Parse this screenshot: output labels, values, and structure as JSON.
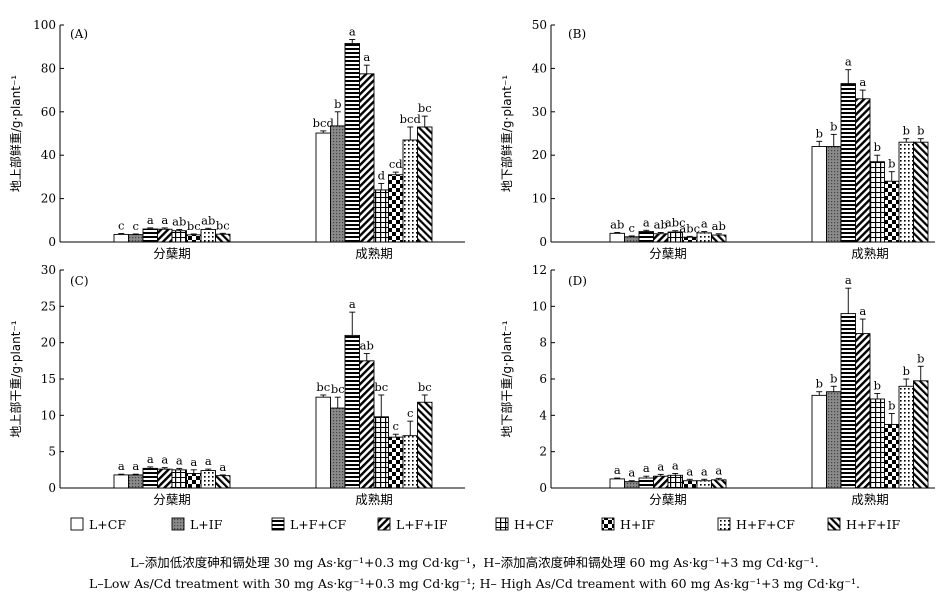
{
  "chart_data": [
    {
      "panel": "(A)",
      "type": "bar",
      "ylabel": "地上部鲜重/g·plant⁻¹",
      "ylim": [
        0,
        100
      ],
      "yticks": [
        0,
        20,
        40,
        60,
        80,
        100
      ],
      "groups": [
        "分蘖期",
        "成熟期"
      ],
      "series": [
        "L+CF",
        "L+IF",
        "L+F+CF",
        "L+F+IF",
        "H+CF",
        "H+IF",
        "H+F+CF",
        "H+F+IF"
      ],
      "values": [
        [
          3.5,
          3.4,
          6.0,
          5.9,
          5.2,
          3.3,
          5.8,
          3.6
        ],
        [
          50.2,
          53.5,
          91.5,
          77.5,
          24.0,
          31.0,
          47.0,
          53.0
        ]
      ],
      "errors": [
        [
          0.4,
          0.3,
          0.5,
          0.6,
          0.6,
          0.4,
          0.5,
          0.4
        ],
        [
          1.0,
          6.5,
          1.8,
          4.0,
          3.0,
          1.2,
          6.0,
          5.0
        ]
      ],
      "labels": [
        [
          "c",
          "c",
          "a",
          "a",
          "ab",
          "bc",
          "ab",
          "bc"
        ],
        [
          "bcd",
          "b",
          "a",
          "a",
          "d",
          "cd",
          "bcd",
          "bc"
        ]
      ]
    },
    {
      "panel": "(B)",
      "type": "bar",
      "ylabel": "地下部鲜重/g·plant⁻¹",
      "ylim": [
        0,
        50
      ],
      "yticks": [
        0,
        10,
        20,
        30,
        40,
        50
      ],
      "groups": [
        "分蘖期",
        "成熟期"
      ],
      "series": [
        "L+CF",
        "L+IF",
        "L+F+CF",
        "L+F+IF",
        "H+CF",
        "H+IF",
        "H+F+CF",
        "H+F+IF"
      ],
      "values": [
        [
          2.0,
          1.2,
          2.4,
          1.9,
          2.3,
          1.1,
          2.1,
          1.6
        ],
        [
          22.0,
          22.0,
          36.5,
          33.0,
          18.5,
          14.0,
          23.0,
          23.0
        ]
      ],
      "errors": [
        [
          0.2,
          0.2,
          0.3,
          0.3,
          0.3,
          0.2,
          0.3,
          0.3
        ],
        [
          1.2,
          2.8,
          3.2,
          2.0,
          1.5,
          2.2,
          0.8,
          0.8
        ]
      ],
      "labels": [
        [
          "ab",
          "c",
          "a",
          "ab",
          "abc",
          "abc",
          "a",
          "ab"
        ],
        [
          "b",
          "b",
          "a",
          "a",
          "b",
          "b",
          "b",
          "b"
        ]
      ]
    },
    {
      "panel": "(C)",
      "type": "bar",
      "ylabel": "地上部干重/g·plant⁻¹",
      "ylim": [
        0,
        30
      ],
      "yticks": [
        0,
        5,
        10,
        15,
        20,
        25,
        30
      ],
      "groups": [
        "分蘖期",
        "成熟期"
      ],
      "series": [
        "L+CF",
        "L+IF",
        "L+F+CF",
        "L+F+IF",
        "H+CF",
        "H+IF",
        "H+F+CF",
        "H+F+IF"
      ],
      "values": [
        [
          1.8,
          1.8,
          2.7,
          2.6,
          2.5,
          2.0,
          2.4,
          1.7
        ],
        [
          12.5,
          11.0,
          21.0,
          17.5,
          9.8,
          7.0,
          7.2,
          11.8
        ]
      ],
      "errors": [
        [
          0.1,
          0.1,
          0.2,
          0.2,
          0.2,
          0.5,
          0.2,
          0.1
        ],
        [
          0.3,
          1.5,
          3.2,
          1.0,
          3.0,
          0.4,
          2.0,
          1.0
        ]
      ],
      "labels": [
        [
          "a",
          "a",
          "a",
          "a",
          "a",
          "a",
          "a",
          "a"
        ],
        [
          "bc",
          "bc",
          "a",
          "ab",
          "bc",
          "c",
          "c",
          "bc"
        ]
      ]
    },
    {
      "panel": "(D)",
      "type": "bar",
      "ylabel": "地下部干重/g·plant⁻¹",
      "ylim": [
        0,
        12
      ],
      "yticks": [
        0,
        2,
        4,
        6,
        8,
        10,
        12
      ],
      "groups": [
        "分蘖期",
        "成熟期"
      ],
      "series": [
        "L+CF",
        "L+IF",
        "L+F+CF",
        "L+F+IF",
        "H+CF",
        "H+IF",
        "H+F+CF",
        "H+F+IF"
      ],
      "values": [
        [
          0.5,
          0.35,
          0.55,
          0.65,
          0.7,
          0.4,
          0.4,
          0.45
        ],
        [
          5.1,
          5.3,
          9.6,
          8.5,
          4.9,
          3.5,
          5.6,
          5.9
        ]
      ],
      "errors": [
        [
          0.05,
          0.05,
          0.1,
          0.1,
          0.1,
          0.08,
          0.08,
          0.08
        ],
        [
          0.2,
          0.3,
          1.4,
          0.8,
          0.3,
          0.6,
          0.4,
          0.8
        ]
      ],
      "labels": [
        [
          "a",
          "a",
          "a",
          "a",
          "a",
          "a",
          "a",
          "a"
        ],
        [
          "b",
          "b",
          "a",
          "a",
          "b",
          "b",
          "b",
          "b"
        ]
      ]
    }
  ],
  "legend": [
    "L+CF",
    "L+IF",
    "L+F+CF",
    "L+F+IF",
    "H+CF",
    "H+IF",
    "H+F+CF",
    "H+F+IF"
  ],
  "caption": {
    "zh": "L–添加低浓度砷和镉处理 30 mg As·kg⁻¹+0.3 mg Cd·kg⁻¹，H–添加高浓度砷和镉处理 60 mg As·kg⁻¹+3 mg Cd·kg⁻¹.",
    "en": "L–Low As/Cd treatment with 30 mg As·kg⁻¹+0.3 mg Cd·kg⁻¹; H– High As/Cd treament with 60 mg As·kg⁻¹+3 mg Cd·kg⁻¹."
  }
}
